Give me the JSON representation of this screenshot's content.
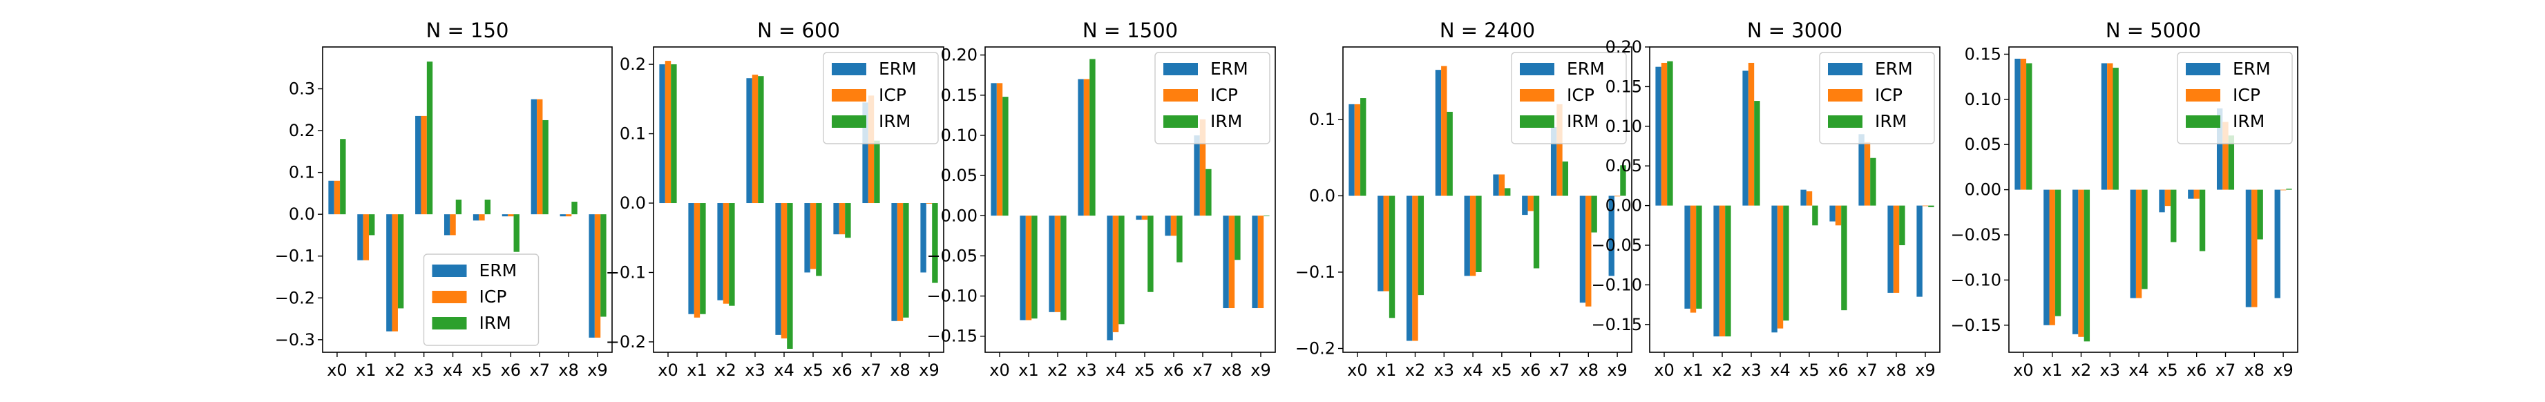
{
  "figure": {
    "colors": {
      "ERM": "#1f77b4",
      "ICP": "#ff7f0e",
      "IRM": "#2ca02c"
    }
  },
  "chart_data": [
    {
      "type": "bar",
      "title": "N = 150",
      "categories": [
        "x0",
        "x1",
        "x2",
        "x3",
        "x4",
        "x5",
        "x6",
        "x7",
        "x8",
        "x9"
      ],
      "series": [
        {
          "name": "ERM",
          "values": [
            0.08,
            -0.11,
            -0.28,
            0.235,
            -0.05,
            -0.015,
            -0.005,
            0.275,
            -0.005,
            -0.295
          ]
        },
        {
          "name": "ICP",
          "values": [
            0.08,
            -0.11,
            -0.28,
            0.235,
            -0.05,
            -0.015,
            -0.005,
            0.275,
            -0.005,
            -0.295
          ]
        },
        {
          "name": "IRM",
          "values": [
            0.18,
            -0.05,
            -0.225,
            0.365,
            0.035,
            0.035,
            -0.09,
            0.225,
            0.03,
            -0.245
          ]
        }
      ],
      "ylim": [
        -0.33,
        0.4
      ],
      "yticks": [
        0.3,
        0.2,
        0.1,
        0.0,
        -0.1,
        -0.2,
        -0.3
      ],
      "ytick_labels": [
        "0.3",
        "0.2",
        "0.1",
        "0.0",
        "−0.1",
        "−0.2",
        "−0.3"
      ],
      "legend_loc": "lower center"
    },
    {
      "type": "bar",
      "title": "N = 600",
      "categories": [
        "x0",
        "x1",
        "x2",
        "x3",
        "x4",
        "x5",
        "x6",
        "x7",
        "x8",
        "x9"
      ],
      "series": [
        {
          "name": "ERM",
          "values": [
            0.2,
            -0.16,
            -0.14,
            0.18,
            -0.19,
            -0.1,
            -0.045,
            0.145,
            -0.17,
            -0.1
          ]
        },
        {
          "name": "ICP",
          "values": [
            0.205,
            -0.165,
            -0.145,
            0.185,
            -0.195,
            -0.095,
            -0.045,
            0.155,
            -0.17,
            0.0
          ]
        },
        {
          "name": "IRM",
          "values": [
            0.2,
            -0.16,
            -0.148,
            0.183,
            -0.21,
            -0.105,
            -0.05,
            0.09,
            -0.165,
            -0.115
          ]
        }
      ],
      "ylim": [
        -0.215,
        0.225
      ],
      "yticks": [
        0.2,
        0.1,
        0.0,
        -0.1,
        -0.2
      ],
      "ytick_labels": [
        "0.2",
        "0.1",
        "0.0",
        "−0.1",
        "−0.2"
      ],
      "legend_loc": "upper right"
    },
    {
      "type": "bar",
      "title": "N = 1500",
      "categories": [
        "x0",
        "x1",
        "x2",
        "x3",
        "x4",
        "x5",
        "x6",
        "x7",
        "x8",
        "x9"
      ],
      "series": [
        {
          "name": "ERM",
          "values": [
            0.165,
            -0.13,
            -0.12,
            0.17,
            -0.155,
            -0.005,
            -0.025,
            0.1,
            -0.115,
            -0.115
          ]
        },
        {
          "name": "ICP",
          "values": [
            0.165,
            -0.13,
            -0.12,
            0.17,
            -0.145,
            -0.005,
            -0.025,
            0.12,
            -0.115,
            -0.115
          ]
        },
        {
          "name": "IRM",
          "values": [
            0.148,
            -0.128,
            -0.13,
            0.195,
            -0.135,
            -0.095,
            -0.058,
            0.058,
            -0.055,
            0.0
          ]
        }
      ],
      "ylim": [
        -0.17,
        0.21
      ],
      "yticks": [
        0.2,
        0.15,
        0.1,
        0.05,
        0.0,
        -0.05,
        -0.1,
        -0.15
      ],
      "ytick_labels": [
        "0.20",
        "0.15",
        "0.10",
        "0.05",
        "0.00",
        "−0.05",
        "−0.10",
        "−0.15"
      ],
      "legend_loc": "upper right"
    },
    {
      "type": "bar",
      "title": "N = 2400",
      "categories": [
        "x0",
        "x1",
        "x2",
        "x3",
        "x4",
        "x5",
        "x6",
        "x7",
        "x8",
        "x9"
      ],
      "series": [
        {
          "name": "ERM",
          "values": [
            0.12,
            -0.125,
            -0.19,
            0.165,
            -0.105,
            0.028,
            -0.025,
            0.09,
            -0.14,
            -0.105
          ]
        },
        {
          "name": "ICP",
          "values": [
            0.12,
            -0.125,
            -0.19,
            0.17,
            -0.105,
            0.028,
            -0.02,
            0.12,
            -0.145,
            0.0
          ]
        },
        {
          "name": "IRM",
          "values": [
            0.128,
            -0.16,
            -0.13,
            0.11,
            -0.1,
            0.01,
            -0.095,
            0.045,
            -0.048,
            0.04
          ]
        }
      ],
      "ylim": [
        -0.205,
        0.195
      ],
      "yticks": [
        0.1,
        0.0,
        -0.1,
        -0.2
      ],
      "ytick_labels": [
        "0.1",
        "0.0",
        "−0.1",
        "−0.2"
      ],
      "legend_loc": "upper right"
    },
    {
      "type": "bar",
      "title": "N = 3000",
      "categories": [
        "x0",
        "x1",
        "x2",
        "x3",
        "x4",
        "x5",
        "x6",
        "x7",
        "x8",
        "x9"
      ],
      "series": [
        {
          "name": "ERM",
          "values": [
            0.175,
            -0.13,
            -0.165,
            0.17,
            -0.16,
            0.02,
            -0.02,
            0.09,
            -0.11,
            -0.115
          ]
        },
        {
          "name": "ICP",
          "values": [
            0.18,
            -0.135,
            -0.165,
            0.18,
            -0.155,
            0.018,
            -0.025,
            0.08,
            -0.11,
            0.0
          ]
        },
        {
          "name": "IRM",
          "values": [
            0.182,
            -0.13,
            -0.165,
            0.132,
            -0.145,
            -0.025,
            -0.132,
            0.06,
            -0.05,
            -0.002
          ]
        }
      ],
      "ylim": [
        -0.185,
        0.2
      ],
      "yticks": [
        0.2,
        0.15,
        0.1,
        0.05,
        0.0,
        -0.05,
        -0.1,
        -0.15
      ],
      "ytick_labels": [
        "0.20",
        "0.15",
        "0.10",
        "0.05",
        "0.00",
        "−0.05",
        "−0.10",
        "−0.15"
      ],
      "legend_loc": "upper right"
    },
    {
      "type": "bar",
      "title": "N = 5000",
      "categories": [
        "x0",
        "x1",
        "x2",
        "x3",
        "x4",
        "x5",
        "x6",
        "x7",
        "x8",
        "x9"
      ],
      "series": [
        {
          "name": "ERM",
          "values": [
            0.145,
            -0.15,
            -0.16,
            0.14,
            -0.12,
            -0.025,
            -0.01,
            0.09,
            -0.13,
            -0.12
          ]
        },
        {
          "name": "ICP",
          "values": [
            0.145,
            -0.15,
            -0.163,
            0.14,
            -0.12,
            -0.018,
            -0.01,
            0.075,
            -0.13,
            0.0
          ]
        },
        {
          "name": "IRM",
          "values": [
            0.14,
            -0.14,
            -0.168,
            0.135,
            -0.11,
            -0.058,
            -0.068,
            0.06,
            -0.055,
            0.001
          ]
        }
      ],
      "ylim": [
        -0.18,
        0.158
      ],
      "yticks": [
        0.15,
        0.1,
        0.05,
        0.0,
        -0.05,
        -0.1,
        -0.15
      ],
      "ytick_labels": [
        "0.15",
        "0.10",
        "0.05",
        "0.00",
        "−0.05",
        "−0.10",
        "−0.15"
      ],
      "legend_loc": "upper right"
    }
  ]
}
